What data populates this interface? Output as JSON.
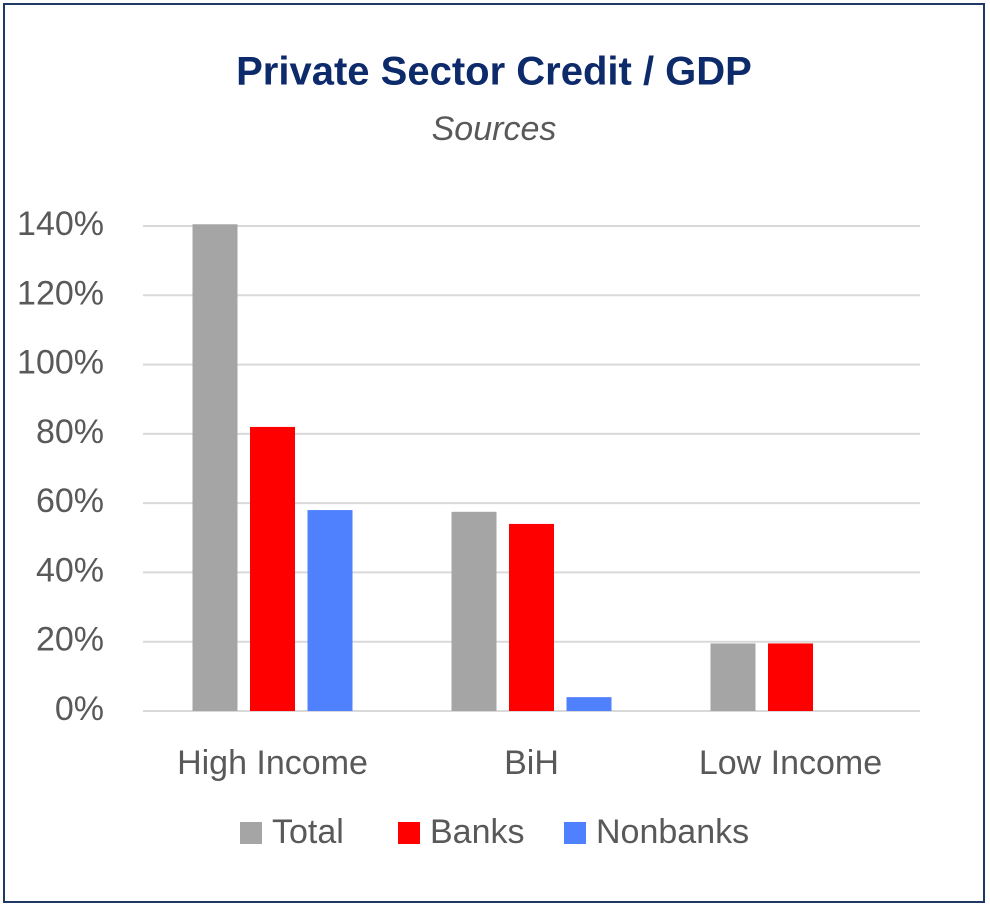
{
  "chart_data": {
    "type": "bar",
    "title": "Private Sector Credit / GDP",
    "subtitle": "Sources",
    "categories": [
      "High Income",
      "BiH",
      "Low Income"
    ],
    "series": [
      {
        "name": "Total",
        "color": "#a5a5a5",
        "values": [
          140.5,
          57.5,
          19.5
        ]
      },
      {
        "name": "Banks",
        "color": "#ff0000",
        "values": [
          82,
          54,
          19.5
        ]
      },
      {
        "name": "Nonbanks",
        "color": "#4f81ff",
        "values": [
          58,
          4,
          0
        ]
      }
    ],
    "ylim": [
      0,
      140
    ],
    "yticks": [
      {
        "value": 0,
        "label": "0%"
      },
      {
        "value": 20,
        "label": "20%"
      },
      {
        "value": 40,
        "label": "40%"
      },
      {
        "value": 60,
        "label": "60%"
      },
      {
        "value": 80,
        "label": "80%"
      },
      {
        "value": 100,
        "label": "100%"
      },
      {
        "value": 120,
        "label": "120%"
      },
      {
        "value": 140,
        "label": "140%"
      }
    ],
    "grid": true,
    "legend": "bottom"
  }
}
